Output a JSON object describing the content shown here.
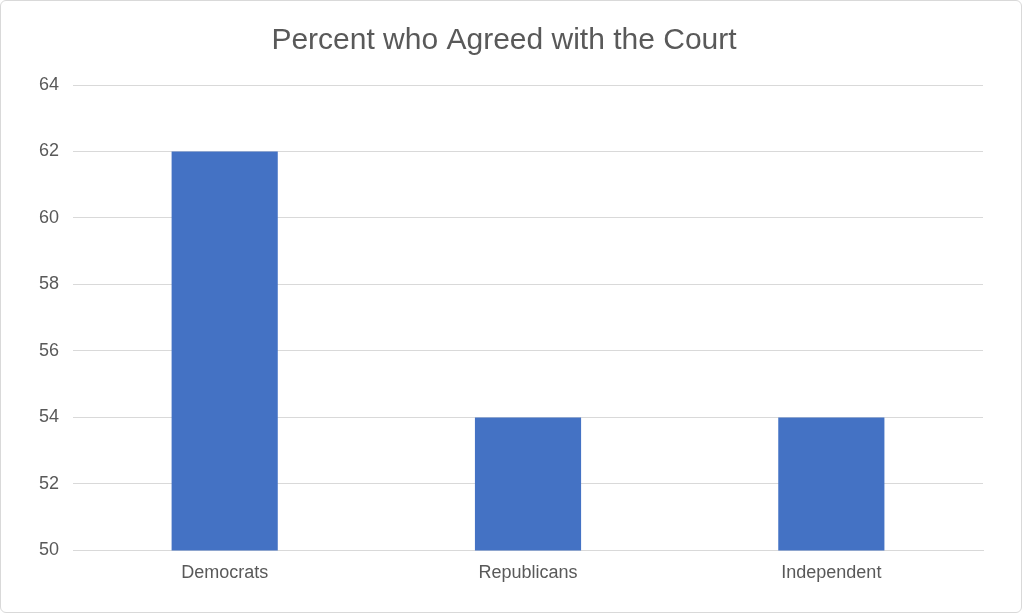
{
  "chart_data": {
    "type": "bar",
    "title": "Percent who Agreed with the Court",
    "categories": [
      "Democrats",
      "Republicans",
      "Independent"
    ],
    "values": [
      62,
      54,
      54
    ],
    "color": "#4472c4",
    "ylim": [
      50,
      64
    ],
    "yticks": [
      50,
      52,
      54,
      56,
      58,
      60,
      62,
      64
    ],
    "grid": true
  }
}
